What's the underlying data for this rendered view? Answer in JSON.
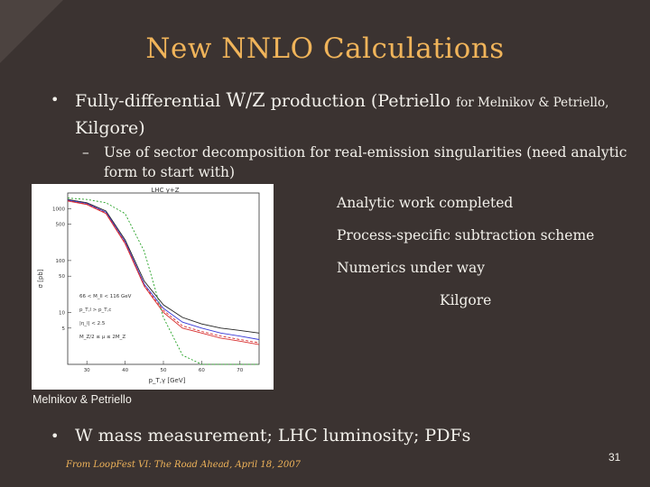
{
  "slide": {
    "title": "New NNLO Calculations",
    "bullet1": {
      "part1": "Fully-differential ",
      "part2": "W/Z",
      "part3": " production (Petriello ",
      "part4": "for Melnikov & Petriello,",
      "part5": "Kilgore)"
    },
    "sub1": "Use of sector decomposition for real-emission singularities (need analytic form to start with)",
    "status_items": {
      "a": "Analytic work completed",
      "b": "Process-specific subtraction scheme",
      "c": "Numerics under way",
      "d": "Kilgore"
    },
    "plot": {
      "title": "LHC γ+Z",
      "ylabel": "σ [pb]",
      "xlabel": "p_T,γ [GeV]",
      "yticks": [
        "1000",
        "500",
        "100",
        "50",
        "10",
        "5"
      ],
      "xticks": [
        "30",
        "40",
        "50",
        "60",
        "70"
      ],
      "legend": [
        "66 < M_ll < 116 GeV",
        "p_T,l > p_T,c",
        "|η_l| < 2.5",
        "M_Z/2 ≤ μ ≤ 2M_Z"
      ],
      "colors": {
        "lo": "#22a022",
        "nlo": "#3a3ad8",
        "nnlo": "#d83030",
        "black": "#222222"
      }
    },
    "caption": "Melnikov & Petriello",
    "bullet2": "W mass measurement; LHC luminosity; PDFs",
    "footer": "From LoopFest VI: The Road Ahead, April 18, 2007",
    "page_number": "31",
    "colors": {
      "background": "#3b3331",
      "title": "#f0b45a",
      "text": "#f2f0ea"
    }
  },
  "chart_data": {
    "type": "line",
    "title": "LHC γ+Z",
    "xlabel": "p_T,γ [GeV]",
    "ylabel": "σ [pb]",
    "xlim": [
      25,
      75
    ],
    "ylim": [
      1,
      2000
    ],
    "log_y": true,
    "x": [
      25,
      30,
      35,
      40,
      45,
      50,
      55,
      60,
      65,
      70,
      75
    ],
    "series": [
      {
        "values": [
          1500,
          1300,
          900,
          250,
          40,
          14,
          8,
          6,
          5,
          4.5,
          4
        ]
      },
      {
        "values": [
          1450,
          1250,
          850,
          230,
          35,
          12,
          6.5,
          5,
          4,
          3.5,
          3
        ]
      },
      {
        "values": [
          1400,
          1200,
          800,
          210,
          32,
          10,
          5,
          4,
          3.2,
          2.8,
          2.4
        ]
      },
      {
        "values": [
          1420,
          1230,
          820,
          220,
          33,
          11,
          5.5,
          4.3,
          3.5,
          3,
          2.6
        ]
      },
      {
        "values": [
          1600,
          1500,
          1300,
          800,
          150,
          8,
          1.5,
          1,
          1,
          1,
          1
        ]
      }
    ]
  }
}
